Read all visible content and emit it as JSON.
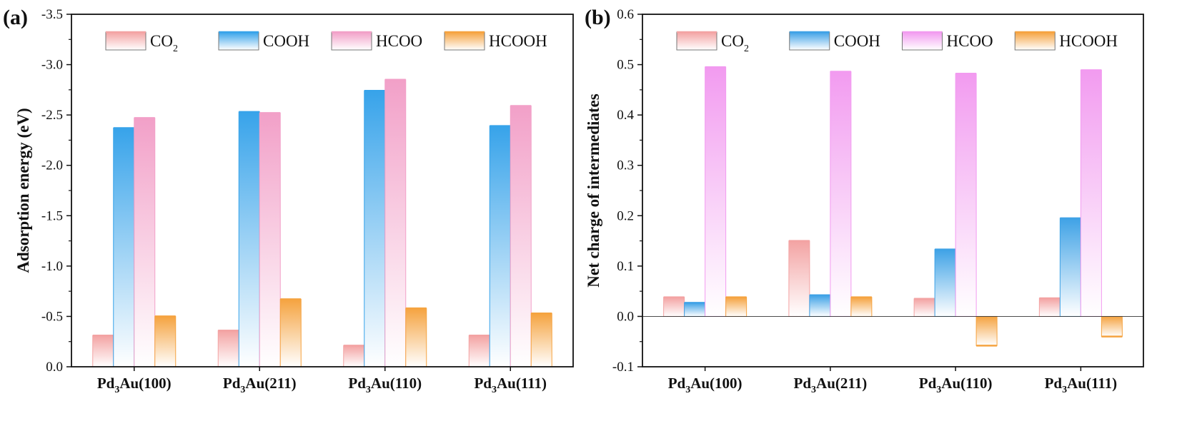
{
  "chart_data": [
    {
      "panel_label": "(a)",
      "type": "bar",
      "ylabel": "Adsorption energy (eV)",
      "ylim": [
        0.0,
        -3.5
      ],
      "y_axis_inverted": true,
      "yticks": [
        "0.0",
        "-0.5",
        "-1.0",
        "-1.5",
        "-2.0",
        "-2.5",
        "-3.0",
        "-3.5"
      ],
      "categories": [
        {
          "main": "Pd",
          "sub": "3",
          "rest": "Au(100)"
        },
        {
          "main": "Pd",
          "sub": "3",
          "rest": "Au(211)"
        },
        {
          "main": "Pd",
          "sub": "3",
          "rest": "Au(110)"
        },
        {
          "main": "Pd",
          "sub": "3",
          "rest": "Au(111)"
        }
      ],
      "legend_position": "top",
      "series": [
        {
          "key": "co2",
          "label_main": "CO",
          "label_sub": "2",
          "color": "#f3a3a3",
          "values": [
            -0.31,
            -0.36,
            -0.21,
            -0.31
          ]
        },
        {
          "key": "cooh",
          "label_main": "COOH",
          "label_sub": "",
          "color": "#37a3ea",
          "values": [
            -2.37,
            -2.53,
            -2.74,
            -2.39
          ]
        },
        {
          "key": "hcoo",
          "label_main": "HCOO",
          "label_sub": "",
          "color": "#f2a0c8",
          "values": [
            -2.47,
            -2.52,
            -2.85,
            -2.59
          ]
        },
        {
          "key": "hcooh",
          "label_main": "HCOOH",
          "label_sub": "",
          "color": "#f5a340",
          "values": [
            -0.5,
            -0.67,
            -0.58,
            -0.53
          ]
        }
      ]
    },
    {
      "panel_label": "(b)",
      "type": "bar",
      "ylabel": "Net charge of intermediates",
      "ylim": [
        -0.1,
        0.6
      ],
      "y_axis_inverted": false,
      "yticks": [
        "-0.1",
        "0.0",
        "0.1",
        "0.2",
        "0.3",
        "0.4",
        "0.5",
        "0.6"
      ],
      "categories": [
        {
          "main": "Pd",
          "sub": "3",
          "rest": "Au(100)"
        },
        {
          "main": "Pd",
          "sub": "3",
          "rest": "Au(211)"
        },
        {
          "main": "Pd",
          "sub": "3",
          "rest": "Au(110)"
        },
        {
          "main": "Pd",
          "sub": "3",
          "rest": "Au(111)"
        }
      ],
      "legend_position": "top",
      "series": [
        {
          "key": "co2",
          "label_main": "CO",
          "label_sub": "2",
          "color": "#f3a3a3",
          "values": [
            0.038,
            0.15,
            0.035,
            0.036
          ]
        },
        {
          "key": "cooh",
          "label_main": "COOH",
          "label_sub": "",
          "color": "#3fa2e6",
          "values": [
            0.027,
            0.042,
            0.133,
            0.195
          ]
        },
        {
          "key": "hcoo",
          "label_main": "HCOO",
          "label_sub": "",
          "color": "#f29bf0",
          "values": [
            0.495,
            0.486,
            0.482,
            0.489
          ]
        },
        {
          "key": "hcooh",
          "label_main": "HCOOH",
          "label_sub": "",
          "color": "#f5a340",
          "values": [
            0.038,
            0.038,
            -0.058,
            -0.04
          ]
        }
      ]
    }
  ]
}
